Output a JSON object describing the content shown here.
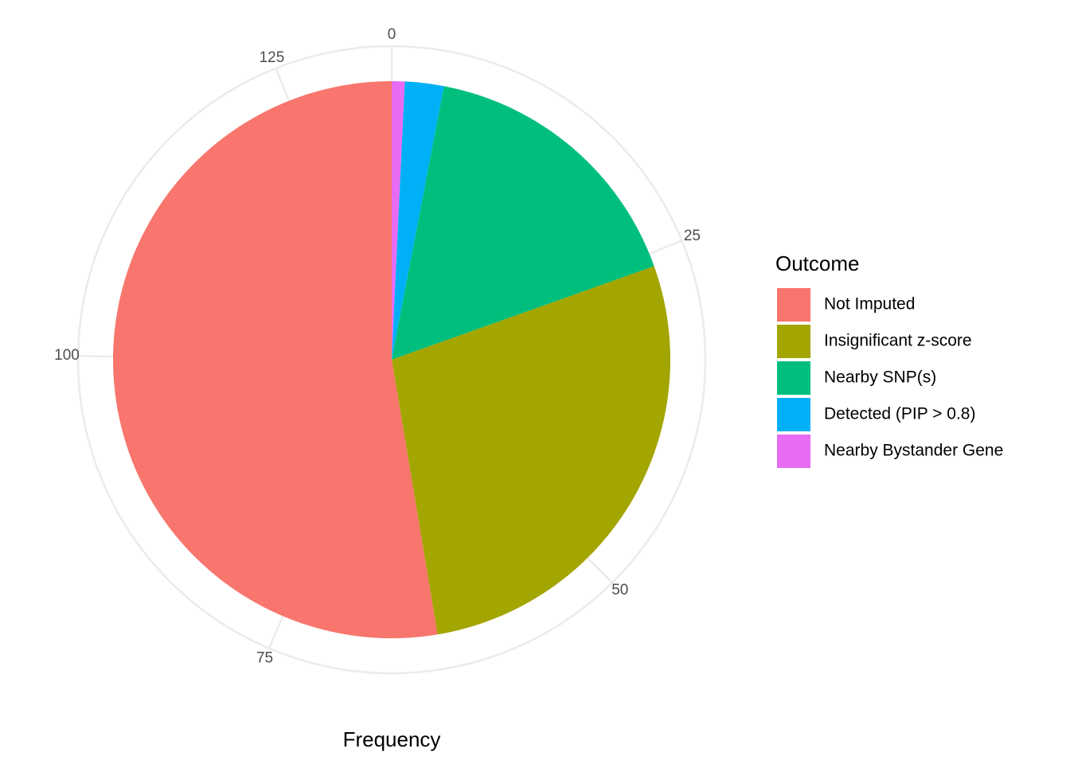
{
  "chart_data": {
    "type": "pie",
    "xlabel": "Frequency",
    "legend": {
      "title": "Outcome",
      "placement": "right"
    },
    "total": 133,
    "axis_ticks": [
      0,
      25,
      50,
      75,
      100,
      125
    ],
    "grid": true,
    "series": [
      {
        "name": "Not Imputed",
        "value": 70,
        "color": "#F8766D"
      },
      {
        "name": "Insignificant z-score",
        "value": 37,
        "color": "#A3A500"
      },
      {
        "name": "Nearby SNP(s)",
        "value": 22,
        "color": "#00BF7D"
      },
      {
        "name": "Detected (PIP > 0.8)",
        "value": 3,
        "color": "#00B0F6"
      },
      {
        "name": "Nearby Bystander Gene",
        "value": 1,
        "color": "#E76BF3"
      }
    ]
  }
}
